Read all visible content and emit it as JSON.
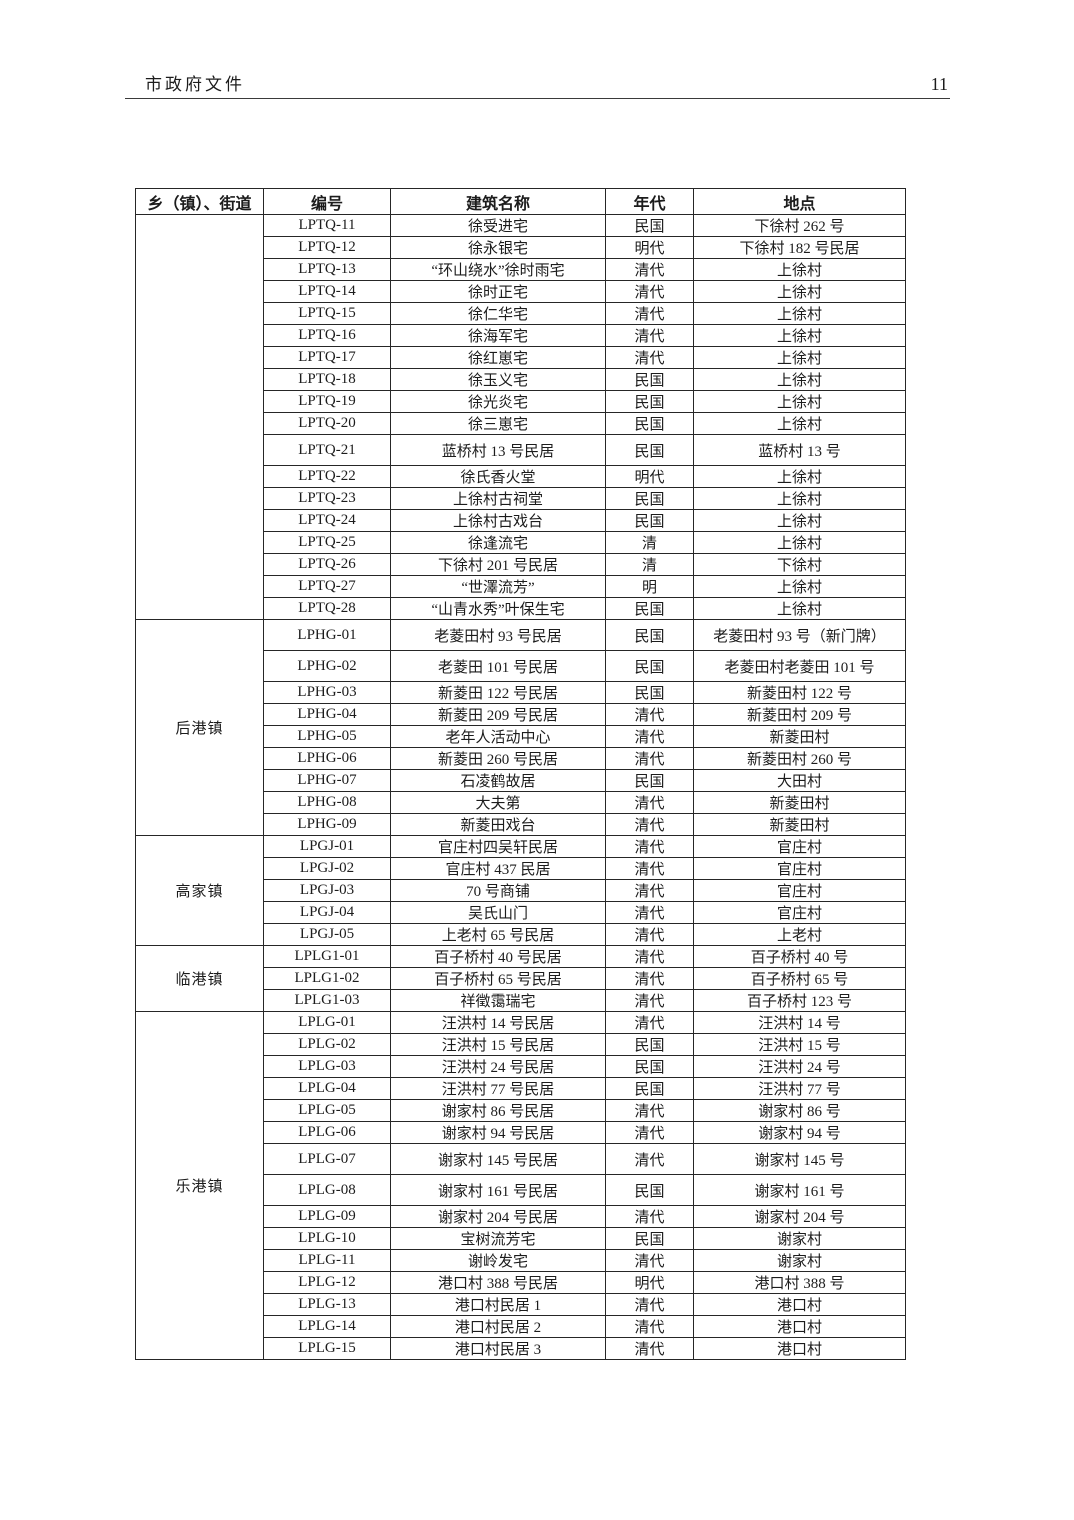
{
  "page": {
    "header_title": "市政府文件",
    "page_number": "11"
  },
  "table": {
    "columns": [
      "乡（镇）、街道",
      "编号",
      "建筑名称",
      "年代",
      "地点"
    ],
    "groups": [
      {
        "town": "",
        "rows": [
          {
            "code": "LPTQ-11",
            "name": "徐受进宅",
            "era": "民国",
            "location": "下徐村 262 号"
          },
          {
            "code": "LPTQ-12",
            "name": "徐永银宅",
            "era": "明代",
            "location": "下徐村 182 号民居"
          },
          {
            "code": "LPTQ-13",
            "name": "“环山绕水”徐时雨宅",
            "era": "清代",
            "location": "上徐村"
          },
          {
            "code": "LPTQ-14",
            "name": "徐时正宅",
            "era": "清代",
            "location": "上徐村"
          },
          {
            "code": "LPTQ-15",
            "name": "徐仁华宅",
            "era": "清代",
            "location": "上徐村"
          },
          {
            "code": "LPTQ-16",
            "name": "徐海军宅",
            "era": "清代",
            "location": "上徐村"
          },
          {
            "code": "LPTQ-17",
            "name": "徐红崽宅",
            "era": "清代",
            "location": "上徐村"
          },
          {
            "code": "LPTQ-18",
            "name": "徐玉义宅",
            "era": "民国",
            "location": "上徐村"
          },
          {
            "code": "LPTQ-19",
            "name": "徐光炎宅",
            "era": "民国",
            "location": "上徐村"
          },
          {
            "code": "LPTQ-20",
            "name": "徐三崽宅",
            "era": "民国",
            "location": "上徐村"
          },
          {
            "code": "LPTQ-21",
            "name": "蓝桥村 13 号民居",
            "era": "民国",
            "location": "蓝桥村 13 号",
            "tall": true
          },
          {
            "code": "LPTQ-22",
            "name": "徐氏香火堂",
            "era": "明代",
            "location": "上徐村"
          },
          {
            "code": "LPTQ-23",
            "name": "上徐村古祠堂",
            "era": "民国",
            "location": "上徐村"
          },
          {
            "code": "LPTQ-24",
            "name": "上徐村古戏台",
            "era": "民国",
            "location": "上徐村"
          },
          {
            "code": "LPTQ-25",
            "name": "徐逢流宅",
            "era": "清",
            "location": "上徐村"
          },
          {
            "code": "LPTQ-26",
            "name": "下徐村 201 号民居",
            "era": "清",
            "location": "下徐村"
          },
          {
            "code": "LPTQ-27",
            "name": "“世澤流芳”",
            "era": "明",
            "location": "上徐村"
          },
          {
            "code": "LPTQ-28",
            "name": "“山青水秀”叶保生宅",
            "era": "民国",
            "location": "上徐村"
          }
        ]
      },
      {
        "town": "后港镇",
        "rows": [
          {
            "code": "LPHG-01",
            "name": "老菱田村 93 号民居",
            "era": "民国",
            "location": "老菱田村 93 号（新门牌）",
            "tall": true
          },
          {
            "code": "LPHG-02",
            "name": "老菱田 101 号民居",
            "era": "民国",
            "location": "老菱田村老菱田 101 号",
            "tall": true
          },
          {
            "code": "LPHG-03",
            "name": "新菱田 122 号民居",
            "era": "民国",
            "location": "新菱田村 122 号"
          },
          {
            "code": "LPHG-04",
            "name": "新菱田 209 号民居",
            "era": "清代",
            "location": "新菱田村 209 号"
          },
          {
            "code": "LPHG-05",
            "name": "老年人活动中心",
            "era": "清代",
            "location": "新菱田村"
          },
          {
            "code": "LPHG-06",
            "name": "新菱田 260 号民居",
            "era": "清代",
            "location": "新菱田村 260 号"
          },
          {
            "code": "LPHG-07",
            "name": "石凌鹤故居",
            "era": "民国",
            "location": "大田村"
          },
          {
            "code": "LPHG-08",
            "name": "大夫第",
            "era": "清代",
            "location": "新菱田村"
          },
          {
            "code": "LPHG-09",
            "name": "新菱田戏台",
            "era": "清代",
            "location": "新菱田村"
          }
        ]
      },
      {
        "town": "高家镇",
        "rows": [
          {
            "code": "LPGJ-01",
            "name": "官庄村四吴轩民居",
            "era": "清代",
            "location": "官庄村"
          },
          {
            "code": "LPGJ-02",
            "name": "官庄村 437 民居",
            "era": "清代",
            "location": "官庄村"
          },
          {
            "code": "LPGJ-03",
            "name": "70 号商铺",
            "era": "清代",
            "location": "官庄村"
          },
          {
            "code": "LPGJ-04",
            "name": "吴氏山门",
            "era": "清代",
            "location": "官庄村"
          },
          {
            "code": "LPGJ-05",
            "name": "上老村 65 号民居",
            "era": "清代",
            "location": "上老村"
          }
        ]
      },
      {
        "town": "临港镇",
        "rows": [
          {
            "code": "LPLG1-01",
            "name": "百子桥村 40 号民居",
            "era": "清代",
            "location": "百子桥村 40 号"
          },
          {
            "code": "LPLG1-02",
            "name": "百子桥村 65 号民居",
            "era": "清代",
            "location": "百子桥村 65 号"
          },
          {
            "code": "LPLG1-03",
            "name": "祥徵霭瑞宅",
            "era": "清代",
            "location": "百子桥村 123 号"
          }
        ]
      },
      {
        "town": "乐港镇",
        "rows": [
          {
            "code": "LPLG-01",
            "name": "汪洪村 14 号民居",
            "era": "清代",
            "location": "汪洪村 14 号"
          },
          {
            "code": "LPLG-02",
            "name": "汪洪村 15 号民居",
            "era": "民国",
            "location": "汪洪村 15 号"
          },
          {
            "code": "LPLG-03",
            "name": "汪洪村 24 号民居",
            "era": "民国",
            "location": "汪洪村 24 号"
          },
          {
            "code": "LPLG-04",
            "name": "汪洪村 77 号民居",
            "era": "民国",
            "location": "汪洪村 77 号"
          },
          {
            "code": "LPLG-05",
            "name": "谢家村 86 号民居",
            "era": "清代",
            "location": "谢家村 86 号"
          },
          {
            "code": "LPLG-06",
            "name": "谢家村 94 号民居",
            "era": "清代",
            "location": "谢家村 94 号"
          },
          {
            "code": "LPLG-07",
            "name": "谢家村 145 号民居",
            "era": "清代",
            "location": "谢家村 145 号",
            "tall": true
          },
          {
            "code": "LPLG-08",
            "name": "谢家村 161 号民居",
            "era": "民国",
            "location": "谢家村 161 号",
            "tall": true
          },
          {
            "code": "LPLG-09",
            "name": "谢家村 204 号民居",
            "era": "清代",
            "location": "谢家村 204 号"
          },
          {
            "code": "LPLG-10",
            "name": "宝树流芳宅",
            "era": "民国",
            "location": "谢家村"
          },
          {
            "code": "LPLG-11",
            "name": "谢岭发宅",
            "era": "清代",
            "location": "谢家村"
          },
          {
            "code": "LPLG-12",
            "name": "港口村 388 号民居",
            "era": "明代",
            "location": "港口村 388 号"
          },
          {
            "code": "LPLG-13",
            "name": "港口村民居 1",
            "era": "清代",
            "location": "港口村"
          },
          {
            "code": "LPLG-14",
            "name": "港口村民居 2",
            "era": "清代",
            "location": "港口村"
          },
          {
            "code": "LPLG-15",
            "name": "港口村民居 3",
            "era": "清代",
            "location": "港口村"
          }
        ]
      }
    ]
  }
}
